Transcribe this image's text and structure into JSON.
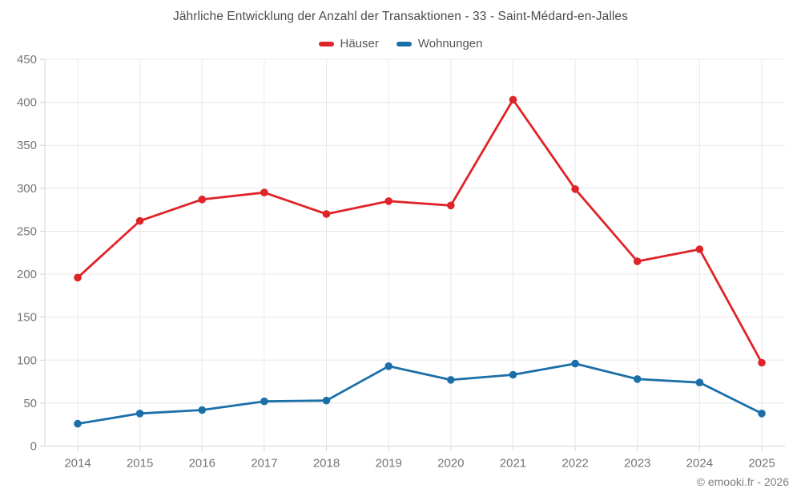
{
  "header": {
    "title": "Jährliche Entwicklung der Anzahl der Transaktionen - 33 - Saint-Médard-en-Jalles"
  },
  "footer": {
    "credit": "© emooki.fr - 2026"
  },
  "chart_data": {
    "type": "line",
    "title": "Jährliche Entwicklung der Anzahl der Transaktionen - 33 - Saint-Médard-en-Jalles",
    "categories": [
      "2014",
      "2015",
      "2016",
      "2017",
      "2018",
      "2019",
      "2020",
      "2021",
      "2022",
      "2023",
      "2024",
      "2025"
    ],
    "series": [
      {
        "name": "Häuser",
        "color": "#df2429",
        "values": [
          196,
          262,
          287,
          295,
          270,
          285,
          280,
          403,
          299,
          215,
          229,
          97
        ]
      },
      {
        "name": "Wohnungen",
        "color": "#1a6fa8",
        "values": [
          26,
          38,
          42,
          52,
          53,
          93,
          77,
          83,
          96,
          78,
          74,
          38
        ]
      }
    ],
    "xlabel": "",
    "ylabel": "",
    "ylim": [
      0,
      450
    ],
    "yticks": [
      0,
      50,
      100,
      150,
      200,
      250,
      300,
      350,
      400,
      450
    ],
    "grid": true,
    "legend_position": "top",
    "point_style": "circle"
  }
}
